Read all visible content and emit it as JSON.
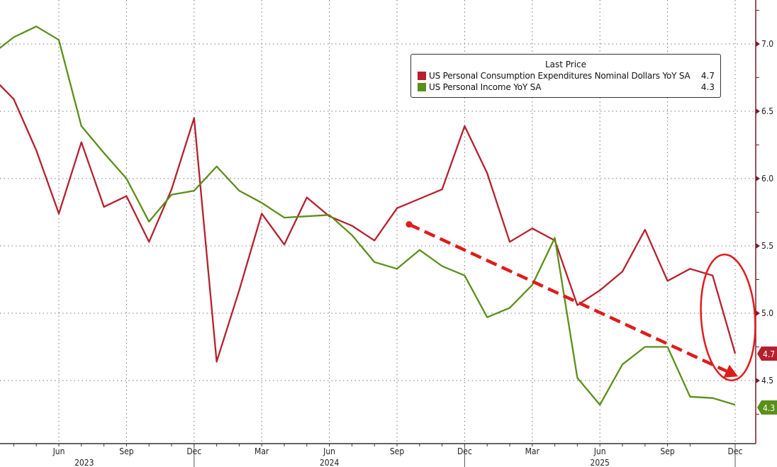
{
  "chart_data": {
    "type": "line",
    "title": "",
    "xlabel": "",
    "ylabel": "",
    "legend_title": "Last Price",
    "legend_placement": "top-right",
    "grid": true,
    "ylim": [
      4.03,
      7.33
    ],
    "y_ticks": [
      "4.5",
      "5.0",
      "5.5",
      "6.0",
      "6.5",
      "7.0"
    ],
    "y_axis_side": "right",
    "x_month_ticks": [
      {
        "label": "Jun",
        "date": "2023-06"
      },
      {
        "label": "Sep",
        "date": "2023-09"
      },
      {
        "label": "Dec",
        "date": "2023-12"
      },
      {
        "label": "Mar",
        "date": "2024-03"
      },
      {
        "label": "Jun",
        "date": "2024-06"
      },
      {
        "label": "Sep",
        "date": "2024-09"
      },
      {
        "label": "Dec",
        "date": "2024-12"
      },
      {
        "label": "Mar",
        "date": "2025-03"
      },
      {
        "label": "Jun",
        "date": "2025-06"
      },
      {
        "label": "Sep",
        "date": "2025-09"
      },
      {
        "label": "Dec",
        "date": "2025-12"
      }
    ],
    "x_year_labels": [
      {
        "label": "2023",
        "date": "2023-07"
      },
      {
        "label": "2024",
        "date": "2024-06"
      },
      {
        "label": "2025",
        "date": "2025-06"
      }
    ],
    "x": [
      "2023-03",
      "2023-04",
      "2023-05",
      "2023-06",
      "2023-07",
      "2023-08",
      "2023-09",
      "2023-10",
      "2023-11",
      "2023-12",
      "2024-01",
      "2024-02",
      "2024-03",
      "2024-04",
      "2024-05",
      "2024-06",
      "2024-07",
      "2024-08",
      "2024-09",
      "2024-10",
      "2024-11",
      "2024-12",
      "2025-01",
      "2025-02",
      "2025-03",
      "2025-04",
      "2025-05",
      "2025-06",
      "2025-07",
      "2025-08",
      "2025-09",
      "2025-10",
      "2025-11",
      "2025-12"
    ],
    "series": [
      {
        "name": "US Personal Consumption Expenditures Nominal Dollars YoY SA",
        "last": "4.7",
        "color": "#b5202e",
        "values": [
          6.76,
          6.59,
          6.21,
          5.74,
          6.27,
          5.79,
          5.87,
          5.53,
          5.92,
          6.45,
          4.64,
          5.17,
          5.74,
          5.51,
          5.86,
          5.72,
          5.65,
          5.54,
          5.78,
          5.85,
          5.92,
          6.39,
          6.04,
          5.53,
          5.63,
          5.54,
          5.06,
          5.17,
          5.31,
          5.62,
          5.24,
          5.33,
          5.28,
          4.7
        ]
      },
      {
        "name": "US Personal Income YoY SA",
        "last": "4.3",
        "color": "#5a8f1a",
        "values": [
          6.92,
          7.05,
          7.13,
          7.03,
          6.39,
          6.19,
          6.0,
          5.68,
          5.88,
          5.91,
          6.09,
          5.91,
          5.82,
          5.71,
          5.72,
          5.73,
          5.58,
          5.38,
          5.33,
          5.47,
          5.35,
          5.28,
          4.97,
          5.04,
          5.21,
          5.56,
          4.52,
          4.32,
          4.62,
          4.75,
          4.75,
          4.38,
          4.37,
          4.32
        ]
      }
    ],
    "annotations": [
      {
        "type": "dashed-arrow",
        "color": "#e01b1b",
        "from": {
          "date": "2024-09",
          "value": 5.66
        },
        "to": {
          "date": "2025-12",
          "value": 4.52
        }
      },
      {
        "type": "ellipse",
        "color": "#e01b1b",
        "around": "2025-11 to 2025-12 drop"
      }
    ]
  }
}
